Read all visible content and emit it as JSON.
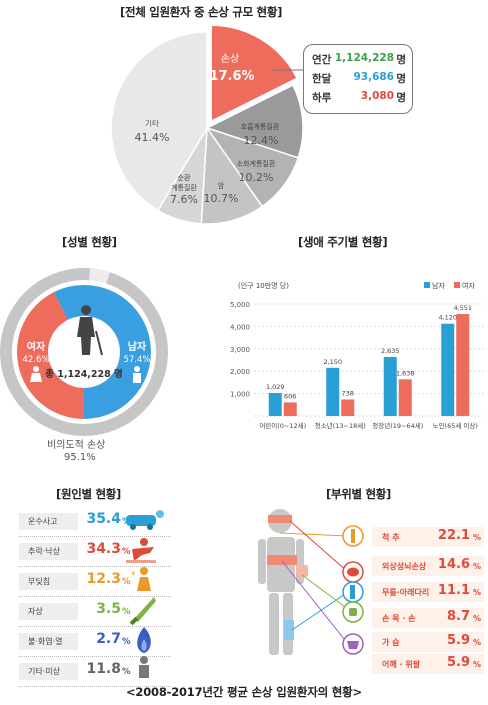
{
  "titles": {
    "overall": "[전체 입원환자 중 손상 규모 현황]",
    "gender": "[성별 현황]",
    "lifecycle": "[생애 주기별 현황]",
    "cause": "[원인별 현황]",
    "bodypart": "[부위별 현황]",
    "footer": "<2008-2017년간 평균 손상 입원환자의 현황>"
  },
  "summary": {
    "rows": [
      {
        "label": "연간",
        "value": "1,124,228",
        "unit": "명",
        "color": "#3aa04a"
      },
      {
        "label": "한달",
        "value": "93,686",
        "unit": "명",
        "color": "#2a9fd6"
      },
      {
        "label": "하루",
        "value": "3,080",
        "unit": "명",
        "color": "#e04a3a"
      }
    ]
  },
  "pie_labels": {
    "injury": {
      "name": "손상",
      "value": "17.6%"
    },
    "respiratory": {
      "name": "호흡계통질환",
      "value": "12.4%"
    },
    "digestive": {
      "name": "소화계통질환",
      "value": "10.2%"
    },
    "cancer": {
      "name": "암",
      "value": "10.7%"
    },
    "circulatory": {
      "name1": "순환",
      "name2": "계통질환",
      "value": "7.6%"
    },
    "other": {
      "name": "기타",
      "value": "41.4%"
    }
  },
  "gender": {
    "female": {
      "name": "여자",
      "value": "42.6%"
    },
    "male": {
      "name": "남자",
      "value": "57.4%"
    },
    "total": "총 1,124,228 명",
    "unintentional": {
      "name": "비의도적 손상",
      "value": "95.1%"
    }
  },
  "cause": {
    "rows": [
      {
        "label": "운수사고",
        "value": "35.4",
        "unit": "%",
        "color": "#2a9fd6"
      },
      {
        "label": "추락·낙상",
        "value": "34.3",
        "unit": "%",
        "color": "#e04a3a"
      },
      {
        "label": "부딪침",
        "value": "12.3",
        "unit": "%",
        "color": "#e89a2a"
      },
      {
        "label": "자상",
        "value": "3.5",
        "unit": "%",
        "color": "#7cb342"
      },
      {
        "label": "불·화염·열",
        "value": "2.7",
        "unit": "%",
        "color": "#3a5fc0"
      },
      {
        "label": "기타·미상",
        "value": "11.8",
        "unit": "%",
        "color": "#666666"
      }
    ],
    "icons": [
      "car-crash-icon",
      "falling-person-icon",
      "collision-icon",
      "knife-icon",
      "flame-icon",
      "person-icon"
    ]
  },
  "bodypart": {
    "rows": [
      {
        "label": "척  추",
        "value": "22.1",
        "unit": "%"
      },
      {
        "label": "외상성뇌손상",
        "value": "14.6",
        "unit": "%"
      },
      {
        "label": "무릎·아래다리",
        "value": "11.1",
        "unit": "%"
      },
      {
        "label": "손 목 · 손",
        "value": "8.7",
        "unit": "%"
      },
      {
        "label": "가    슴",
        "value": "5.9",
        "unit": "%"
      },
      {
        "label": "어깨 · 위팔",
        "value": "5.9",
        "unit": "%"
      }
    ]
  },
  "chart_data": [
    {
      "type": "pie",
      "title": "[전체 입원환자 중 손상 규모 현황]",
      "categories": [
        "손상",
        "호흡계통질환",
        "소화계통질환",
        "암",
        "순환계통질환",
        "기타"
      ],
      "values": [
        17.6,
        12.4,
        10.2,
        10.7,
        7.6,
        41.4
      ],
      "colors": [
        "#ee6c5c",
        "#9a9a9a",
        "#b3b3b3",
        "#c4c4c4",
        "#d6d6d6",
        "#e8e8e8"
      ]
    },
    {
      "type": "pie",
      "title": "[성별 현황]",
      "categories": [
        "여자",
        "남자"
      ],
      "values": [
        42.6,
        57.4
      ],
      "colors": [
        "#ee6c5c",
        "#3a9fe0"
      ]
    },
    {
      "type": "bar",
      "title": "[생애 주기별 현황]",
      "ylabel": "(인구 10만명 당)",
      "categories": [
        "어린이(0~12세)",
        "청소년(13~18세)",
        "청장년(19~64세)",
        "노인(65세 이상)"
      ],
      "series": [
        {
          "name": "남자",
          "values": [
            1029,
            2150,
            2635,
            4120
          ],
          "color": "#2a9fd6"
        },
        {
          "name": "여자",
          "values": [
            606,
            738,
            1638,
            4551
          ],
          "color": "#ee6c5c"
        }
      ],
      "value_labels": {
        "남자": [
          "1,029",
          "2,150",
          "2,635",
          "4,120"
        ],
        "여자": [
          "606",
          "738",
          "1,638",
          "4,551"
        ]
      },
      "ylim": [
        0,
        5000
      ],
      "yticks": [
        "",
        "1,000",
        "2,000",
        "3,000",
        "4,000",
        "5,000"
      ],
      "legend": "top-right",
      "grid": true
    }
  ]
}
